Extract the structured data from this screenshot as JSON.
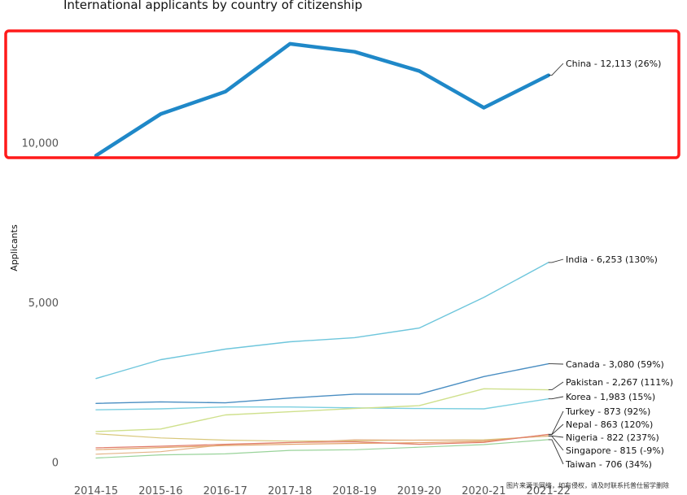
{
  "chart_data": {
    "type": "line",
    "title": "International applicants by country of citizenship",
    "ylabel": "Applicants",
    "xlabel": "",
    "x": [
      "2014-15",
      "2015-16",
      "2016-17",
      "2017-18",
      "2018-19",
      "2019-20",
      "2020-21",
      "2021-22"
    ],
    "yticks": [
      {
        "value": 0,
        "label": "0"
      },
      {
        "value": 5000,
        "label": "5,000"
      },
      {
        "value": 10000,
        "label": "10,000"
      }
    ],
    "ylim": [
      -60,
      13300
    ],
    "grid": false,
    "legend": "labels at line ends",
    "series": [
      {
        "name": "China",
        "label": "China - 12,113 (26%)",
        "color": "#1f88c8",
        "width": 4.5,
        "values": [
          9600,
          10900,
          11600,
          13100,
          12850,
          12250,
          11100,
          12113
        ]
      },
      {
        "name": "India",
        "label": "India - 6,253 (130%)",
        "color": "#6ec6dc",
        "width": 1.4,
        "values": [
          2620,
          3210,
          3540,
          3770,
          3900,
          4200,
          5160,
          6253
        ]
      },
      {
        "name": "Canada",
        "label": "Canada - 3,080 (59%)",
        "color": "#4a8ec2",
        "width": 1.4,
        "values": [
          1840,
          1890,
          1860,
          2010,
          2130,
          2130,
          2680,
          3080
        ]
      },
      {
        "name": "Pakistan",
        "label": "Pakistan - 2,267 (111%)",
        "color": "#cfe08c",
        "width": 1.4,
        "values": [
          960,
          1040,
          1480,
          1580,
          1680,
          1770,
          2300,
          2267
        ]
      },
      {
        "name": "Korea",
        "label": "Korea - 1,983 (15%)",
        "color": "#7ccfe0",
        "width": 1.4,
        "values": [
          1640,
          1670,
          1730,
          1730,
          1700,
          1680,
          1670,
          1983
        ]
      },
      {
        "name": "Turkey",
        "label": "Turkey - 873 (92%)",
        "color": "#e07b6a",
        "width": 1.2,
        "values": [
          450,
          500,
          560,
          620,
          640,
          560,
          620,
          873
        ]
      },
      {
        "name": "Nepal",
        "label": "Nepal - 863 (120%)",
        "color": "#e3a36a",
        "width": 1.2,
        "values": [
          390,
          460,
          520,
          560,
          590,
          610,
          650,
          863
        ]
      },
      {
        "name": "Nigeria",
        "label": "Nigeria - 822 (237%)",
        "color": "#e4b386",
        "width": 1.2,
        "values": [
          250,
          330,
          550,
          610,
          700,
          690,
          680,
          822
        ]
      },
      {
        "name": "Singapore",
        "label": "Singapore - 815 (-9%)",
        "color": "#d8c77a",
        "width": 1.2,
        "values": [
          890,
          760,
          690,
          660,
          670,
          690,
          700,
          815
        ]
      },
      {
        "name": "Taiwan",
        "label": "Taiwan - 706 (34%)",
        "color": "#99d39a",
        "width": 1.2,
        "values": [
          130,
          230,
          260,
          370,
          390,
          470,
          550,
          706
        ]
      }
    ]
  },
  "watermark": "图片来源于网络，如有侵权，请及时联系托普仕留学删除"
}
